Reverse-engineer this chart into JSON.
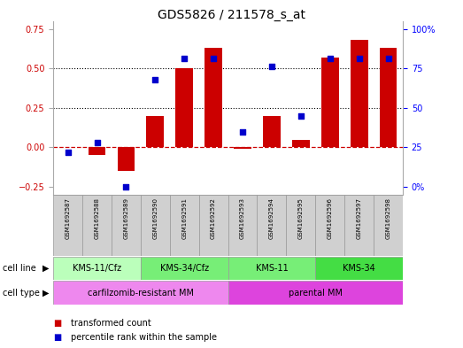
{
  "title": "GDS5826 / 211578_s_at",
  "samples": [
    "GSM1692587",
    "GSM1692588",
    "GSM1692589",
    "GSM1692590",
    "GSM1692591",
    "GSM1692592",
    "GSM1692593",
    "GSM1692594",
    "GSM1692595",
    "GSM1692596",
    "GSM1692597",
    "GSM1692598"
  ],
  "bar_values": [
    0.0,
    -0.05,
    -0.15,
    0.2,
    0.5,
    0.63,
    -0.01,
    0.2,
    0.05,
    0.57,
    0.68,
    0.63
  ],
  "dot_values": [
    -0.03,
    0.03,
    -0.25,
    0.43,
    0.56,
    0.56,
    0.1,
    0.51,
    0.2,
    0.56,
    0.56,
    0.56
  ],
  "bar_color": "#cc0000",
  "dot_color": "#0000cc",
  "zero_line_color": "#cc0000",
  "ylim": [
    -0.3,
    0.8
  ],
  "yticks_left": [
    -0.25,
    0.0,
    0.25,
    0.5,
    0.75
  ],
  "dotted_lines": [
    0.25,
    0.5
  ],
  "cell_line_groups": [
    {
      "label": "KMS-11/Cfz",
      "start": 0,
      "end": 3,
      "color": "#bbffbb"
    },
    {
      "label": "KMS-34/Cfz",
      "start": 3,
      "end": 6,
      "color": "#77ee77"
    },
    {
      "label": "KMS-11",
      "start": 6,
      "end": 9,
      "color": "#77ee77"
    },
    {
      "label": "KMS-34",
      "start": 9,
      "end": 12,
      "color": "#44dd44"
    }
  ],
  "cell_type_groups": [
    {
      "label": "carfilzomib-resistant MM",
      "start": 0,
      "end": 6,
      "color": "#ee88ee"
    },
    {
      "label": "parental MM",
      "start": 6,
      "end": 12,
      "color": "#dd44dd"
    }
  ],
  "legend_bar_label": "transformed count",
  "legend_dot_label": "percentile rank within the sample",
  "bg_color": "#ffffff",
  "sample_box_color": "#d0d0d0",
  "right_tick_positions": [
    -0.25,
    0.0,
    0.25,
    0.5,
    0.75
  ],
  "right_tick_labels": [
    "0%",
    "25",
    "50",
    "75",
    "100%"
  ]
}
